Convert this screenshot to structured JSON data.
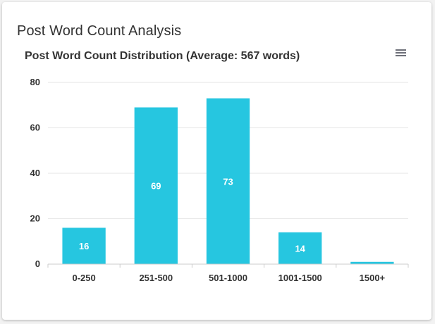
{
  "card": {
    "title": "Post Word Count Analysis"
  },
  "toolbar": {
    "menu_icon": "hamburger-menu-icon"
  },
  "colors": {
    "bar": "#26c6e0",
    "grid": "#e6e6e6",
    "axis": "#cccccc",
    "text": "#333333"
  },
  "chart_data": {
    "type": "bar",
    "title": "Post Word Count Distribution (Average: 567 words)",
    "categories": [
      "0-250",
      "251-500",
      "501-1000",
      "1001-1500",
      "1500+"
    ],
    "values": [
      16,
      69,
      73,
      14,
      1
    ],
    "data_labels": [
      "16",
      "69",
      "73",
      "14",
      ""
    ],
    "ylim": [
      0,
      80
    ],
    "yticks": [
      0,
      20,
      40,
      60,
      80
    ],
    "xlabel": "",
    "ylabel": "",
    "grid": true,
    "legend": false
  }
}
